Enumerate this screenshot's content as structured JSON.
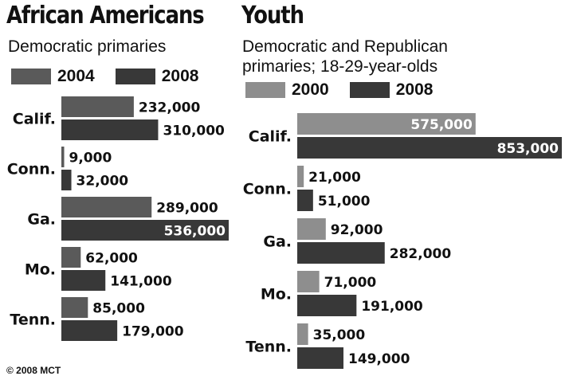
{
  "colors": {
    "light": "#6e6e6e",
    "lighter": "#8e8e8e",
    "dark": "#383838"
  },
  "left": {
    "title": "African Americans",
    "subtitle": "Democratic primaries",
    "legend": [
      "2004",
      "2008"
    ]
  },
  "right": {
    "title": "Youth",
    "subtitle_line1": "Democratic and Republican",
    "subtitle_line2": "primaries; 18-29-year-olds",
    "legend": [
      "2000",
      "2008"
    ]
  },
  "credit": "© 2008 MCT",
  "chart_data": [
    {
      "type": "bar",
      "title": "African Americans",
      "subtitle": "Democratic primaries",
      "categories": [
        "Calif.",
        "Conn.",
        "Ga.",
        "Mo.",
        "Tenn."
      ],
      "series": [
        {
          "name": "2004",
          "values": [
            232000,
            9000,
            289000,
            62000,
            85000
          ],
          "labels": [
            "232,000",
            "9,000",
            "289,000",
            "62,000",
            "85,000"
          ]
        },
        {
          "name": "2008",
          "values": [
            310000,
            32000,
            536000,
            141000,
            179000
          ],
          "labels": [
            "310,000",
            "32,000",
            "536,000",
            "141,000",
            "179,000"
          ]
        }
      ],
      "xlim": [
        0,
        536000
      ]
    },
    {
      "type": "bar",
      "title": "Youth",
      "subtitle": "Democratic and Republican primaries; 18-29-year-olds",
      "categories": [
        "Calif.",
        "Conn.",
        "Ga.",
        "Mo.",
        "Tenn."
      ],
      "series": [
        {
          "name": "2000",
          "values": [
            575000,
            21000,
            92000,
            71000,
            35000
          ],
          "labels": [
            "575,000",
            "21,000",
            "92,000",
            "71,000",
            "35,000"
          ]
        },
        {
          "name": "2008",
          "values": [
            853000,
            51000,
            282000,
            191000,
            149000
          ],
          "labels": [
            "853,000",
            "51,000",
            "282,000",
            "191,000",
            "149,000"
          ]
        }
      ],
      "xlim": [
        0,
        853000
      ]
    }
  ]
}
